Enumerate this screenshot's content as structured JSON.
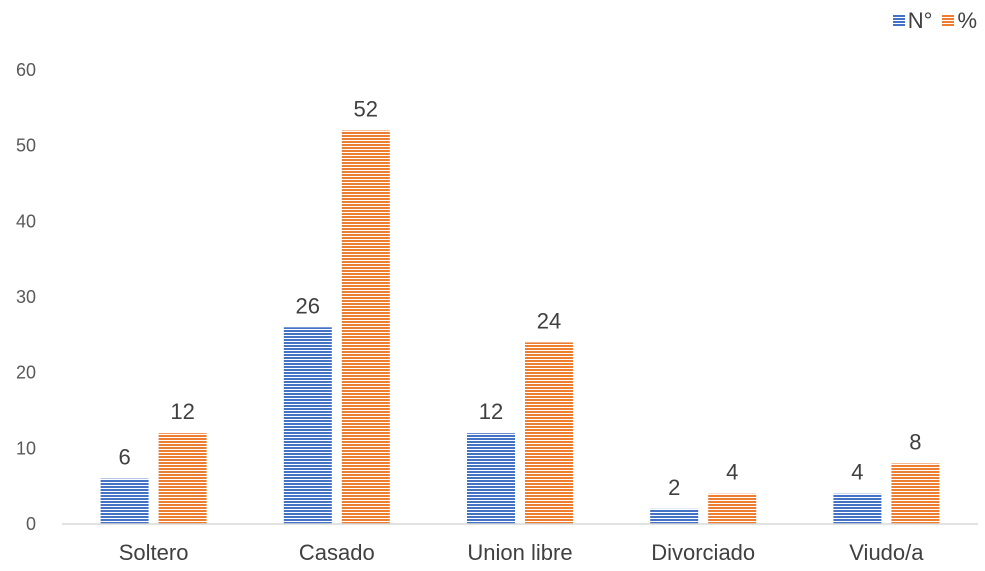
{
  "chart_data": {
    "type": "bar",
    "categories": [
      "Soltero",
      "Casado",
      "Union libre",
      "Divorciado",
      "Viudo/a"
    ],
    "series": [
      {
        "name": "N°",
        "values": [
          6,
          26,
          12,
          2,
          4
        ],
        "color": "#4472C4"
      },
      {
        "name": "%",
        "values": [
          12,
          52,
          24,
          4,
          8
        ],
        "color": "#ED7D31"
      }
    ],
    "ylim": [
      0,
      60
    ],
    "yticks": [
      "0",
      "10",
      "20",
      "30",
      "40",
      "50",
      "60"
    ],
    "xlabel": "",
    "ylabel": "",
    "legend_position": "top-right",
    "grid": false
  }
}
